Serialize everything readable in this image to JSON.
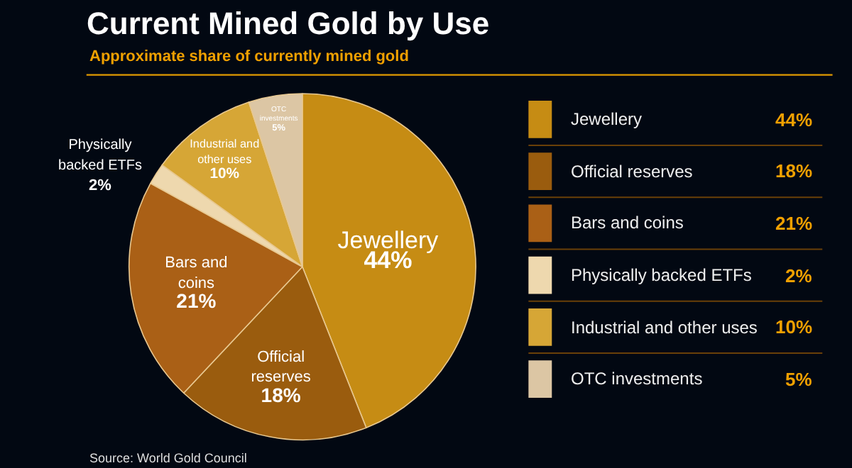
{
  "chart_data": {
    "type": "pie",
    "title": "Current Mined Gold by Use",
    "subtitle": "Approximate share of currently mined gold",
    "categories": [
      "Jewellery",
      "Official reserves",
      "Bars and coins",
      "Physically backed ETFs",
      "Industrial and other uses",
      "OTC investments"
    ],
    "values": [
      44,
      18,
      21,
      2,
      10,
      5
    ],
    "value_labels": [
      "44%",
      "18%",
      "21%",
      "2%",
      "10%",
      "5%"
    ],
    "colors": [
      "#c68c14",
      "#9a5c0e",
      "#aa6016",
      "#eed8ae",
      "#d6a636",
      "#dcc6a4"
    ],
    "legend": "right",
    "annotations": [
      "Source: World Gold Council"
    ]
  }
}
